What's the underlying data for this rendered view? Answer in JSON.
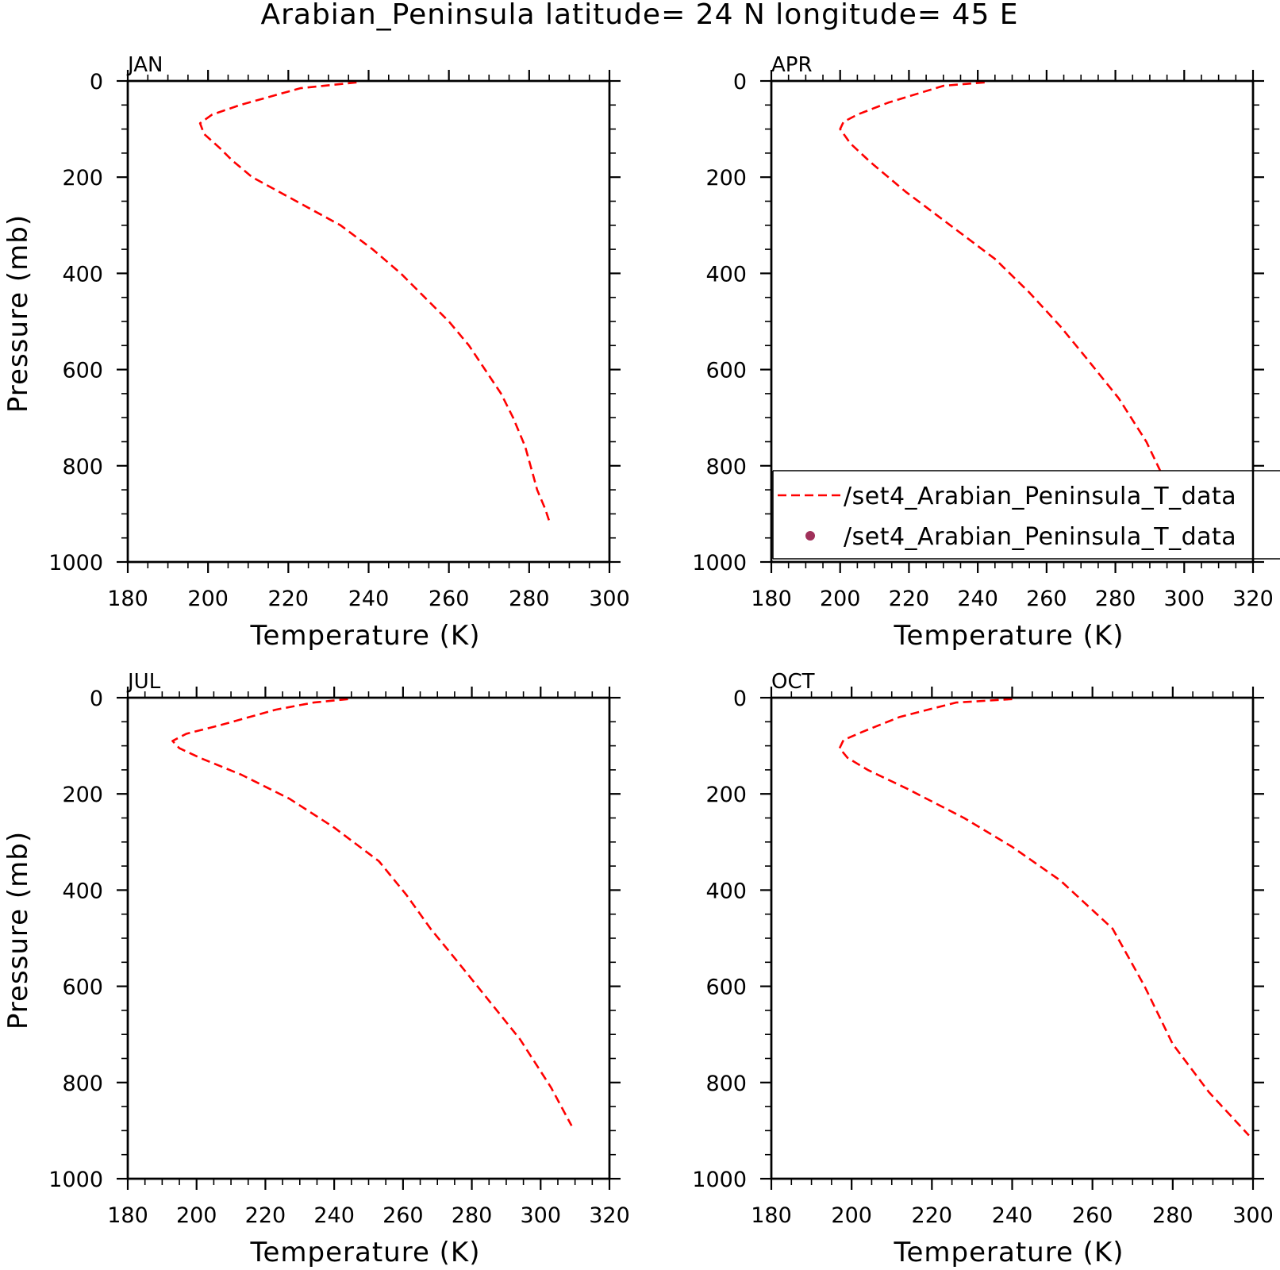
{
  "figure": {
    "title": "Arabian_Peninsula   latitude= 24 N longitude= 45 E"
  },
  "chart_data": [
    {
      "type": "line",
      "label": "JAN",
      "xlabel": "Temperature (K)",
      "ylabel": "Pressure (mb)",
      "xlim": [
        180,
        300
      ],
      "ylim": [
        1000,
        0
      ],
      "xticks": [
        180,
        200,
        220,
        240,
        260,
        280,
        300
      ],
      "yticks": [
        0,
        200,
        400,
        600,
        800,
        1000
      ],
      "series": [
        {
          "color": "#ff0000",
          "style": "dashed",
          "x": [
            237,
            223,
            208,
            201,
            198,
            199,
            203,
            206,
            211,
            222,
            233,
            241,
            248,
            254,
            260,
            265,
            269,
            273,
            276,
            279,
            281,
            282,
            284,
            285
          ],
          "y": [
            3,
            15,
            50,
            70,
            88,
            110,
            140,
            165,
            200,
            250,
            300,
            350,
            400,
            450,
            500,
            550,
            600,
            650,
            700,
            760,
            820,
            850,
            890,
            915
          ]
        }
      ]
    },
    {
      "type": "line",
      "label": "APR",
      "xlabel": "Temperature (K)",
      "ylabel": "",
      "xlim": [
        180,
        320
      ],
      "ylim": [
        1000,
        0
      ],
      "xticks": [
        180,
        200,
        220,
        240,
        260,
        280,
        300,
        320
      ],
      "yticks": [
        0,
        200,
        400,
        600,
        800,
        1000
      ],
      "legend": {
        "placement": "lower-right",
        "entries": [
          {
            "label": "/set4_Arabian_Peninsula_T_data",
            "marker": "dashed-line",
            "color": "#ff0000"
          },
          {
            "label": "/set4_Arabian_Peninsula_T_data",
            "marker": "dot",
            "color": "#a0305a"
          }
        ]
      },
      "series": [
        {
          "color": "#ff0000",
          "style": "dashed",
          "x": [
            242,
            230,
            214,
            205,
            201,
            200,
            203,
            209,
            219,
            232,
            245,
            255,
            264,
            272,
            281,
            289,
            295,
            299
          ],
          "y": [
            3,
            10,
            45,
            70,
            85,
            100,
            130,
            170,
            230,
            300,
            370,
            440,
            510,
            580,
            660,
            750,
            840,
            910
          ]
        }
      ]
    },
    {
      "type": "line",
      "label": "JUL",
      "xlabel": "Temperature (K)",
      "ylabel": "Pressure (mb)",
      "xlim": [
        180,
        320
      ],
      "ylim": [
        1000,
        0
      ],
      "xticks": [
        180,
        200,
        220,
        240,
        260,
        280,
        300,
        320
      ],
      "yticks": [
        0,
        200,
        400,
        600,
        800,
        1000
      ],
      "series": [
        {
          "color": "#ff0000",
          "style": "dashed",
          "x": [
            244,
            234,
            223,
            208,
            197,
            193,
            195,
            201,
            213,
            227,
            240,
            253,
            261,
            268,
            276,
            285,
            294,
            303,
            309
          ],
          "y": [
            3,
            10,
            25,
            55,
            75,
            90,
            105,
            125,
            160,
            210,
            270,
            340,
            410,
            480,
            550,
            630,
            710,
            810,
            890
          ]
        }
      ]
    },
    {
      "type": "line",
      "label": "OCT",
      "xlabel": "Temperature (K)",
      "ylabel": "",
      "xlim": [
        180,
        300
      ],
      "ylim": [
        1000,
        0
      ],
      "xticks": [
        180,
        200,
        220,
        240,
        260,
        280,
        300
      ],
      "yticks": [
        0,
        200,
        400,
        600,
        800,
        1000
      ],
      "series": [
        {
          "color": "#ff0000",
          "style": "dashed",
          "x": [
            240,
            226,
            212,
            203,
            198,
            197,
            199,
            204,
            214,
            228,
            240,
            252,
            265,
            273,
            280,
            289,
            299
          ],
          "y": [
            3,
            10,
            40,
            70,
            88,
            105,
            125,
            150,
            190,
            250,
            310,
            380,
            480,
            600,
            720,
            820,
            910
          ]
        }
      ]
    }
  ]
}
